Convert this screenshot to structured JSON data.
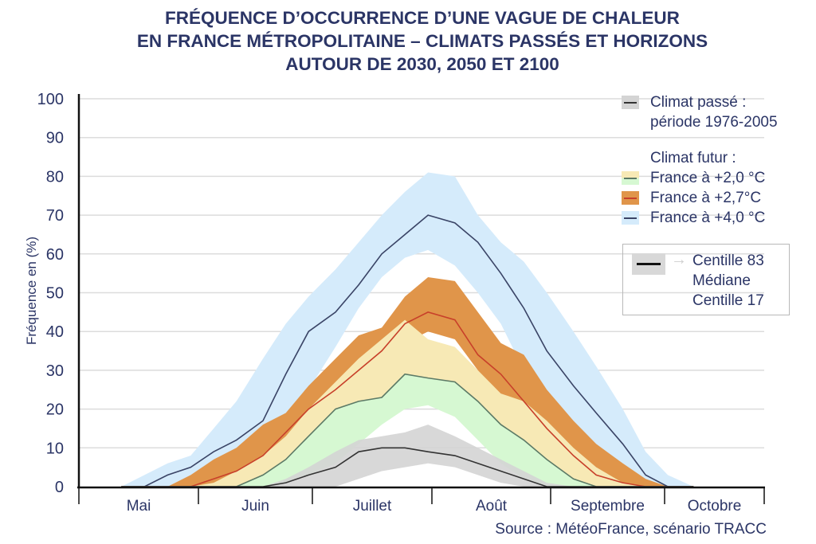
{
  "chart_data": {
    "type": "area",
    "title": [
      "FRÉQUENCE D’OCCURRENCE D’UNE VAGUE DE CHALEUR",
      "EN FRANCE MÉTROPOLITAINE – CLIMATS PASSÉS ET HORIZONS",
      "AUTOUR DE 2030, 2050 ET 2100"
    ],
    "ylabel": "Fréquence en (%)",
    "xlabel": "",
    "ylim": [
      0,
      100
    ],
    "yticks": [
      0,
      10,
      20,
      30,
      40,
      50,
      60,
      70,
      80,
      90,
      100
    ],
    "months": [
      "Mai",
      "Juin",
      "Juillet",
      "Août",
      "Septembre",
      "Octobre"
    ],
    "grid": true,
    "legend_position": "right",
    "x": [
      "05-12",
      "05-18",
      "05-24",
      "05-30",
      "06-05",
      "06-11",
      "06-18",
      "06-24",
      "06-30",
      "07-07",
      "07-13",
      "07-19",
      "07-25",
      "07-31",
      "08-07",
      "08-13",
      "08-19",
      "08-25",
      "08-31",
      "09-07",
      "09-13",
      "09-20",
      "09-26",
      "10-02",
      "10-10"
    ],
    "series": [
      {
        "name": "France à +4,0°C",
        "key": "p40",
        "band_color": "#d5ebfb",
        "line_color": "#3a4466",
        "upper": [
          0,
          3,
          6,
          8,
          15,
          22,
          33,
          42,
          49,
          56,
          63,
          70,
          76,
          81,
          80,
          70,
          63,
          58,
          50,
          40,
          31,
          20,
          9,
          3,
          0
        ],
        "median": [
          0,
          0,
          3,
          5,
          9,
          12,
          17,
          29,
          40,
          45,
          52,
          60,
          65,
          70,
          68,
          63,
          55,
          46,
          35,
          26,
          19,
          11,
          3,
          0,
          0
        ],
        "lower": [
          0,
          0,
          0,
          0,
          2,
          5,
          9,
          16,
          25,
          36,
          46,
          54,
          59,
          61,
          57,
          50,
          42,
          30,
          20,
          10,
          3,
          0,
          0,
          0,
          0
        ]
      },
      {
        "name": "France à +2,7°C",
        "key": "p27",
        "band_color": "#e0954a",
        "line_color": "#c8402a",
        "upper": [
          0,
          0,
          0,
          3,
          7,
          10,
          16,
          19,
          26,
          33,
          39,
          41,
          49,
          54,
          53,
          45,
          37,
          34,
          25,
          17,
          11,
          6,
          2,
          0,
          0
        ],
        "median": [
          0,
          0,
          0,
          0,
          2,
          4,
          8,
          14,
          20,
          25,
          30,
          35,
          42,
          45,
          43,
          34,
          29,
          22,
          15,
          8,
          3,
          1,
          0,
          0,
          0
        ],
        "lower": [
          0,
          0,
          0,
          0,
          0,
          0,
          2,
          6,
          12,
          19,
          26,
          32,
          37,
          40,
          38,
          30,
          22,
          15,
          9,
          4,
          1,
          0,
          0,
          0,
          0
        ]
      },
      {
        "name": "France à +2,0°C",
        "key": "p20",
        "band_color": "#f7e9b5",
        "band_color_low": "#d6f8d2",
        "line_color": "#5c7a66",
        "upper": [
          0,
          0,
          0,
          0,
          1,
          4,
          8,
          13,
          20,
          27,
          33,
          38,
          43,
          38,
          36,
          30,
          24,
          22,
          17,
          10,
          5,
          1,
          0,
          0,
          0
        ],
        "median": [
          0,
          0,
          0,
          0,
          0,
          0,
          3,
          7,
          13,
          20,
          22,
          23,
          29,
          28,
          27,
          22,
          16,
          12,
          7,
          2,
          0,
          0,
          0,
          0,
          0
        ],
        "lower": [
          0,
          0,
          0,
          0,
          0,
          0,
          0,
          1,
          3,
          6,
          11,
          16,
          20,
          21,
          18,
          12,
          6,
          2,
          0,
          0,
          0,
          0,
          0,
          0,
          0
        ]
      },
      {
        "name": "Climat passé : période 1976-2005",
        "key": "past",
        "band_color": "#d4d4d4",
        "line_color": "#333333",
        "upper": [
          0,
          0,
          0,
          0,
          0,
          0,
          0,
          2,
          5,
          9,
          12,
          13,
          14,
          16,
          13,
          10,
          7,
          4,
          1,
          0,
          0,
          0,
          0,
          0,
          0
        ],
        "median": [
          0,
          0,
          0,
          0,
          0,
          0,
          0,
          1,
          3,
          5,
          9,
          10,
          10,
          9,
          8,
          6,
          4,
          2,
          0,
          0,
          0,
          0,
          0,
          0,
          0
        ],
        "lower": [
          0,
          0,
          0,
          0,
          0,
          0,
          0,
          0,
          0,
          0,
          2,
          4,
          5,
          6,
          5,
          3,
          1,
          0,
          0,
          0,
          0,
          0,
          0,
          0,
          0
        ]
      }
    ]
  },
  "legend": {
    "past_label_1": "Climat passé :",
    "past_label_2": "période 1976-2005",
    "future_heading": "Climat futur :",
    "p20": "France à +2,0 °C",
    "p27": "France à +2,7°C",
    "p40": "France à +4,0 °C",
    "key_c83": "Centille 83",
    "key_median": "Médiane",
    "key_c17": "Centille 17"
  },
  "source": "Source : MétéoFrance, scénario TRACC"
}
